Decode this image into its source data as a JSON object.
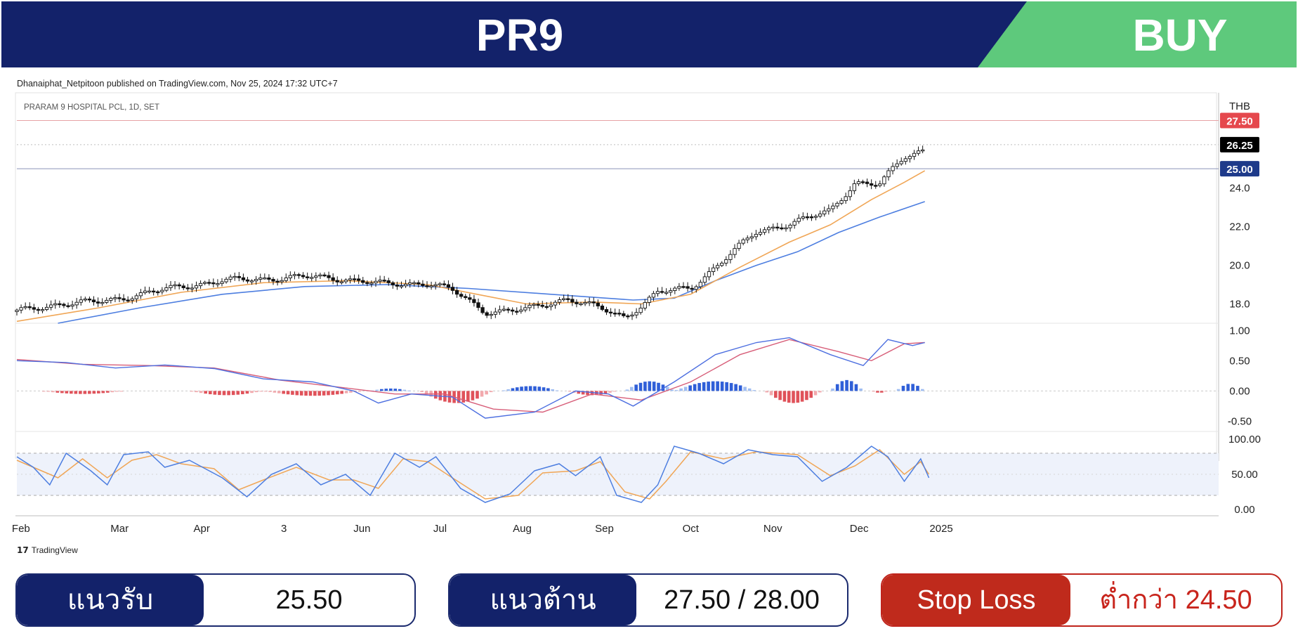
{
  "header": {
    "ticker": "PR9",
    "signal": "BUY",
    "navy_color": "#13226a",
    "green_color": "#5ec97c"
  },
  "published": "Dhanaiphat_Netpitoon published on TradingView.com, Nov 25, 2024 17:32 UTC+7",
  "chart_data": {
    "type": "candlestick",
    "symbol_label": "PRARAM 9 HOSPITAL PCL, 1D, SET",
    "currency": "THB",
    "price_axis": {
      "ylim": [
        17.0,
        28.5
      ],
      "ticks": [
        "24.0",
        "22.0",
        "20.0",
        "18.0"
      ],
      "tick_values": [
        24.0,
        22.0,
        20.0,
        18.0
      ]
    },
    "levels": [
      {
        "label": "27.50",
        "value": 27.5,
        "color": "#e5484d"
      },
      {
        "label": "26.25",
        "value": 26.25,
        "color": "#000000"
      },
      {
        "label": "25.00",
        "value": 25.0,
        "color": "#1e3a8a"
      }
    ],
    "x_axis": {
      "labels": [
        "Feb",
        "Mar",
        "Apr",
        "3",
        "Jun",
        "Jul",
        "Aug",
        "Sep",
        "Oct",
        "Nov",
        "Dec",
        "2025"
      ],
      "positions": [
        0.9,
        2.1,
        3.1,
        4.1,
        5.05,
        6.0,
        7.0,
        8.0,
        9.05,
        10.05,
        11.1,
        12.1
      ]
    },
    "close_series": [
      {
        "t": 0.0,
        "v": 17.6
      },
      {
        "t": 0.5,
        "v": 18.0
      },
      {
        "t": 1.0,
        "v": 18.1
      },
      {
        "t": 1.5,
        "v": 18.5
      },
      {
        "t": 2.0,
        "v": 18.9
      },
      {
        "t": 2.5,
        "v": 19.2
      },
      {
        "t": 3.0,
        "v": 19.3
      },
      {
        "t": 3.5,
        "v": 19.4
      },
      {
        "t": 4.0,
        "v": 19.3
      },
      {
        "t": 4.5,
        "v": 19.0
      },
      {
        "t": 5.0,
        "v": 19.1
      },
      {
        "t": 5.3,
        "v": 18.7
      },
      {
        "t": 5.7,
        "v": 17.6
      },
      {
        "t": 6.2,
        "v": 17.7
      },
      {
        "t": 6.7,
        "v": 18.3
      },
      {
        "t": 7.0,
        "v": 17.9
      },
      {
        "t": 7.4,
        "v": 17.3
      },
      {
        "t": 7.8,
        "v": 18.6
      },
      {
        "t": 8.2,
        "v": 18.8
      },
      {
        "t": 8.6,
        "v": 20.3
      },
      {
        "t": 9.0,
        "v": 21.7
      },
      {
        "t": 9.5,
        "v": 22.3
      },
      {
        "t": 9.9,
        "v": 22.8
      },
      {
        "t": 10.2,
        "v": 24.3
      },
      {
        "t": 10.5,
        "v": 24.2
      },
      {
        "t": 10.8,
        "v": 25.6
      },
      {
        "t": 11.05,
        "v": 26.0
      }
    ],
    "ema_fast": [
      {
        "t": 0.0,
        "v": 17.1
      },
      {
        "t": 1.0,
        "v": 17.8
      },
      {
        "t": 2.0,
        "v": 18.6
      },
      {
        "t": 3.0,
        "v": 19.1
      },
      {
        "t": 4.0,
        "v": 19.2
      },
      {
        "t": 5.0,
        "v": 19.0
      },
      {
        "t": 5.6,
        "v": 18.5
      },
      {
        "t": 6.2,
        "v": 18.0
      },
      {
        "t": 7.0,
        "v": 18.1
      },
      {
        "t": 7.6,
        "v": 18.0
      },
      {
        "t": 8.2,
        "v": 18.5
      },
      {
        "t": 8.8,
        "v": 19.9
      },
      {
        "t": 9.4,
        "v": 21.2
      },
      {
        "t": 9.9,
        "v": 22.1
      },
      {
        "t": 10.4,
        "v": 23.4
      },
      {
        "t": 10.8,
        "v": 24.3
      },
      {
        "t": 11.05,
        "v": 24.9
      }
    ],
    "ema_slow": [
      {
        "t": 0.5,
        "v": 17.0
      },
      {
        "t": 1.5,
        "v": 17.8
      },
      {
        "t": 2.5,
        "v": 18.5
      },
      {
        "t": 3.5,
        "v": 18.9
      },
      {
        "t": 4.5,
        "v": 19.0
      },
      {
        "t": 5.5,
        "v": 18.8
      },
      {
        "t": 6.5,
        "v": 18.5
      },
      {
        "t": 7.5,
        "v": 18.2
      },
      {
        "t": 8.0,
        "v": 18.3
      },
      {
        "t": 8.5,
        "v": 19.2
      },
      {
        "t": 9.0,
        "v": 20.0
      },
      {
        "t": 9.5,
        "v": 20.7
      },
      {
        "t": 10.0,
        "v": 21.7
      },
      {
        "t": 10.5,
        "v": 22.5
      },
      {
        "t": 11.05,
        "v": 23.3
      }
    ],
    "macd": {
      "ylim": [
        -0.6,
        1.05
      ],
      "ticks": [
        "1.00",
        "0.50",
        "0.00",
        "-0.50"
      ],
      "tick_values": [
        1.0,
        0.5,
        0.0,
        -0.5
      ],
      "macd_line": [
        {
          "t": 0.0,
          "v": 0.5
        },
        {
          "t": 0.6,
          "v": 0.47
        },
        {
          "t": 1.2,
          "v": 0.38
        },
        {
          "t": 1.8,
          "v": 0.43
        },
        {
          "t": 2.4,
          "v": 0.37
        },
        {
          "t": 3.0,
          "v": 0.2
        },
        {
          "t": 3.6,
          "v": 0.15
        },
        {
          "t": 4.1,
          "v": 0.0
        },
        {
          "t": 4.4,
          "v": -0.2
        },
        {
          "t": 4.8,
          "v": -0.05
        },
        {
          "t": 5.3,
          "v": -0.1
        },
        {
          "t": 5.7,
          "v": -0.45
        },
        {
          "t": 6.3,
          "v": -0.35
        },
        {
          "t": 6.8,
          "v": 0.0
        },
        {
          "t": 7.2,
          "v": -0.05
        },
        {
          "t": 7.5,
          "v": -0.25
        },
        {
          "t": 8.0,
          "v": 0.15
        },
        {
          "t": 8.5,
          "v": 0.6
        },
        {
          "t": 9.0,
          "v": 0.8
        },
        {
          "t": 9.4,
          "v": 0.88
        },
        {
          "t": 9.9,
          "v": 0.6
        },
        {
          "t": 10.3,
          "v": 0.42
        },
        {
          "t": 10.6,
          "v": 0.85
        },
        {
          "t": 10.9,
          "v": 0.75
        },
        {
          "t": 11.05,
          "v": 0.8
        }
      ],
      "signal_line": [
        {
          "t": 0.0,
          "v": 0.52
        },
        {
          "t": 0.8,
          "v": 0.44
        },
        {
          "t": 1.6,
          "v": 0.42
        },
        {
          "t": 2.4,
          "v": 0.38
        },
        {
          "t": 3.2,
          "v": 0.18
        },
        {
          "t": 4.0,
          "v": 0.05
        },
        {
          "t": 4.6,
          "v": -0.05
        },
        {
          "t": 5.2,
          "v": -0.05
        },
        {
          "t": 5.8,
          "v": -0.3
        },
        {
          "t": 6.4,
          "v": -0.35
        },
        {
          "t": 7.0,
          "v": -0.05
        },
        {
          "t": 7.6,
          "v": -0.15
        },
        {
          "t": 8.2,
          "v": 0.15
        },
        {
          "t": 8.8,
          "v": 0.6
        },
        {
          "t": 9.4,
          "v": 0.85
        },
        {
          "t": 10.0,
          "v": 0.65
        },
        {
          "t": 10.4,
          "v": 0.5
        },
        {
          "t": 10.8,
          "v": 0.78
        },
        {
          "t": 11.05,
          "v": 0.8
        }
      ],
      "histogram_spans": [
        {
          "from": 0.3,
          "to": 1.3,
          "peak": -0.05
        },
        {
          "from": 2.1,
          "to": 3.0,
          "peak": -0.07
        },
        {
          "from": 3.0,
          "to": 4.2,
          "peak": -0.08
        },
        {
          "from": 4.3,
          "to": 4.8,
          "peak": 0.04
        },
        {
          "from": 4.9,
          "to": 5.8,
          "peak": -0.2
        },
        {
          "from": 5.9,
          "to": 6.6,
          "peak": 0.08
        },
        {
          "from": 6.7,
          "to": 7.3,
          "peak": -0.07
        },
        {
          "from": 7.4,
          "to": 8.0,
          "peak": 0.16
        },
        {
          "from": 8.0,
          "to": 9.0,
          "peak": 0.16
        },
        {
          "from": 9.1,
          "to": 9.8,
          "peak": -0.2
        },
        {
          "from": 9.9,
          "to": 10.3,
          "peak": 0.18
        },
        {
          "from": 10.4,
          "to": 10.6,
          "peak": -0.03
        },
        {
          "from": 10.7,
          "to": 11.05,
          "peak": 0.12
        }
      ]
    },
    "stochastic": {
      "ylim": [
        -5,
        105
      ],
      "ticks": [
        "100.00",
        "50.00",
        "0.00"
      ],
      "tick_values": [
        100,
        50,
        0
      ],
      "upper_band": 80,
      "lower_band": 20,
      "k_line": [
        {
          "t": 0.0,
          "v": 75
        },
        {
          "t": 0.2,
          "v": 60
        },
        {
          "t": 0.4,
          "v": 35
        },
        {
          "t": 0.6,
          "v": 80
        },
        {
          "t": 0.9,
          "v": 55
        },
        {
          "t": 1.1,
          "v": 35
        },
        {
          "t": 1.3,
          "v": 78
        },
        {
          "t": 1.6,
          "v": 82
        },
        {
          "t": 1.8,
          "v": 60
        },
        {
          "t": 2.1,
          "v": 70
        },
        {
          "t": 2.5,
          "v": 45
        },
        {
          "t": 2.8,
          "v": 18
        },
        {
          "t": 3.1,
          "v": 50
        },
        {
          "t": 3.4,
          "v": 65
        },
        {
          "t": 3.7,
          "v": 35
        },
        {
          "t": 4.0,
          "v": 50
        },
        {
          "t": 4.3,
          "v": 20
        },
        {
          "t": 4.6,
          "v": 80
        },
        {
          "t": 4.9,
          "v": 60
        },
        {
          "t": 5.1,
          "v": 75
        },
        {
          "t": 5.4,
          "v": 30
        },
        {
          "t": 5.7,
          "v": 10
        },
        {
          "t": 6.0,
          "v": 22
        },
        {
          "t": 6.3,
          "v": 55
        },
        {
          "t": 6.6,
          "v": 65
        },
        {
          "t": 6.8,
          "v": 48
        },
        {
          "t": 7.1,
          "v": 75
        },
        {
          "t": 7.3,
          "v": 20
        },
        {
          "t": 7.6,
          "v": 10
        },
        {
          "t": 7.8,
          "v": 35
        },
        {
          "t": 8.0,
          "v": 90
        },
        {
          "t": 8.3,
          "v": 80
        },
        {
          "t": 8.6,
          "v": 65
        },
        {
          "t": 8.9,
          "v": 85
        },
        {
          "t": 9.2,
          "v": 78
        },
        {
          "t": 9.5,
          "v": 75
        },
        {
          "t": 9.8,
          "v": 40
        },
        {
          "t": 10.1,
          "v": 60
        },
        {
          "t": 10.4,
          "v": 90
        },
        {
          "t": 10.6,
          "v": 75
        },
        {
          "t": 10.8,
          "v": 40
        },
        {
          "t": 11.0,
          "v": 72
        },
        {
          "t": 11.1,
          "v": 45
        }
      ],
      "d_line": [
        {
          "t": 0.0,
          "v": 70
        },
        {
          "t": 0.3,
          "v": 55
        },
        {
          "t": 0.5,
          "v": 45
        },
        {
          "t": 0.8,
          "v": 72
        },
        {
          "t": 1.1,
          "v": 45
        },
        {
          "t": 1.4,
          "v": 70
        },
        {
          "t": 1.7,
          "v": 78
        },
        {
          "t": 2.0,
          "v": 65
        },
        {
          "t": 2.4,
          "v": 58
        },
        {
          "t": 2.7,
          "v": 28
        },
        {
          "t": 3.0,
          "v": 42
        },
        {
          "t": 3.4,
          "v": 60
        },
        {
          "t": 3.8,
          "v": 42
        },
        {
          "t": 4.1,
          "v": 42
        },
        {
          "t": 4.4,
          "v": 30
        },
        {
          "t": 4.7,
          "v": 72
        },
        {
          "t": 5.0,
          "v": 68
        },
        {
          "t": 5.3,
          "v": 45
        },
        {
          "t": 5.7,
          "v": 15
        },
        {
          "t": 6.1,
          "v": 20
        },
        {
          "t": 6.4,
          "v": 52
        },
        {
          "t": 6.8,
          "v": 55
        },
        {
          "t": 7.1,
          "v": 68
        },
        {
          "t": 7.4,
          "v": 25
        },
        {
          "t": 7.7,
          "v": 15
        },
        {
          "t": 7.9,
          "v": 40
        },
        {
          "t": 8.2,
          "v": 82
        },
        {
          "t": 8.6,
          "v": 72
        },
        {
          "t": 9.0,
          "v": 82
        },
        {
          "t": 9.5,
          "v": 78
        },
        {
          "t": 9.9,
          "v": 48
        },
        {
          "t": 10.2,
          "v": 62
        },
        {
          "t": 10.5,
          "v": 85
        },
        {
          "t": 10.8,
          "v": 50
        },
        {
          "t": 11.0,
          "v": 68
        },
        {
          "t": 11.1,
          "v": 50
        }
      ]
    },
    "colors": {
      "ema_fast": "#f0a656",
      "ema_slow": "#4d7ee0",
      "macd_line": "#4d6fe0",
      "signal_line": "#d75d78",
      "hist_pos": "#2f5fd8",
      "hist_neg": "#e0525a",
      "stoch_k": "#4d7ee0",
      "stoch_d": "#f0a656"
    }
  },
  "footer": {
    "tradingview": "TradingView",
    "support_label": "แนวรับ",
    "support_value": "25.50",
    "resistance_label": "แนวต้าน",
    "resistance_value": "27.50 / 28.00",
    "stoploss_label": "Stop Loss",
    "stoploss_value": "ต่ำกว่า 24.50"
  }
}
